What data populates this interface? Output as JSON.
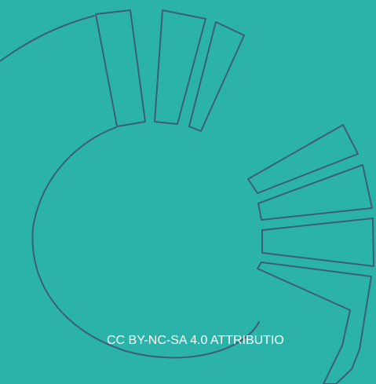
{
  "colors": {
    "background": "#2bb3aa",
    "line": "#3b5e79",
    "text": "#ffffff"
  },
  "license": {
    "text": "CC BY-NC-SA 4.0 ATTRIBUTIO"
  }
}
